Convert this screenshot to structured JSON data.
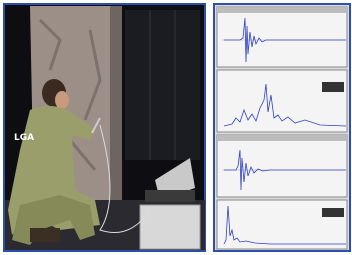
{
  "photo": {
    "jacket_text": "LGA"
  }
}
